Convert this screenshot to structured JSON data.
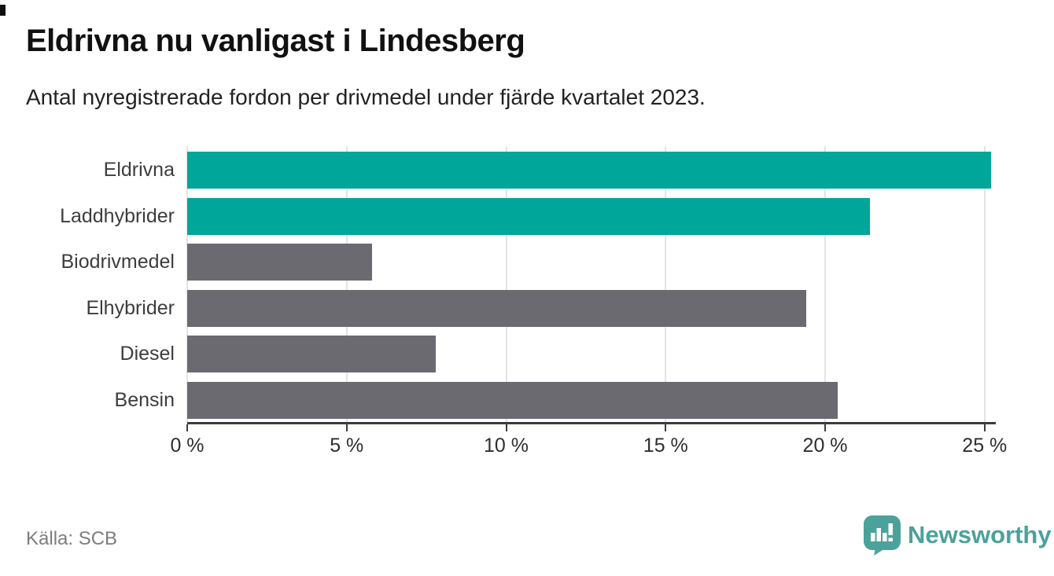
{
  "page": {
    "title": "Eldrivna nu vanligast i Lindesberg",
    "subtitle": "Antal nyregistrerade fordon per drivmedel under fjärde kvartalet 2023.",
    "source": "Källa: SCB",
    "brand": {
      "name": "Newsworthy",
      "logo_icon": "newsworthy-speech-bubble-bar-chart-icon"
    }
  },
  "colors": {
    "teal": "#00a69a",
    "gray": "#6b6a70",
    "brand_teal": "#4aa29b",
    "axis": "#3c3c3c",
    "gridline": "#e3e3e3",
    "title_text": "#111111",
    "subtitle_text": "#222222",
    "label_text": "#3d3d3d",
    "tick_text": "#2e2e2e",
    "source_text": "#7d7d7d"
  },
  "chart_data": {
    "type": "bar",
    "orientation": "horizontal",
    "title": "Eldrivna nu vanligast i Lindesberg",
    "subtitle": "Antal nyregistrerade fordon per drivmedel under fjärde kvartalet 2023.",
    "categories": [
      "Eldrivna",
      "Laddhybrider",
      "Biodrivmedel",
      "Elhybrider",
      "Diesel",
      "Bensin"
    ],
    "values": [
      25.2,
      21.4,
      5.8,
      19.4,
      7.8,
      20.4
    ],
    "unit": "%",
    "bar_colors": [
      "#00a69a",
      "#00a69a",
      "#6b6a70",
      "#6b6a70",
      "#6b6a70",
      "#6b6a70"
    ],
    "xlabel": "",
    "ylabel": "",
    "xlim": [
      0,
      25.35
    ],
    "xticks": [
      0,
      5,
      10,
      15,
      20,
      25
    ],
    "xtick_labels": [
      "0 %",
      "5 %",
      "10 %",
      "15 %",
      "20 %",
      "25 %"
    ],
    "grid": "vertical-gridlines",
    "legend": "none"
  }
}
